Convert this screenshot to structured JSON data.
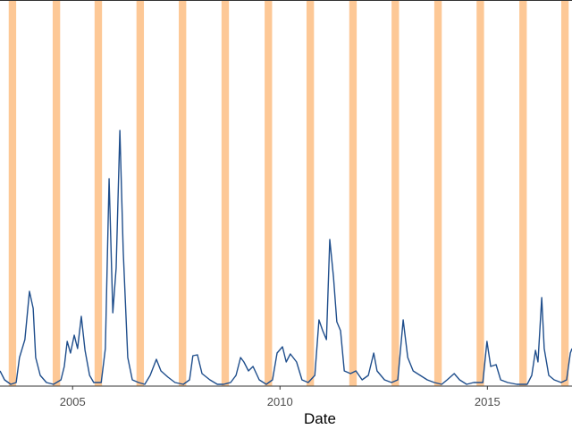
{
  "chart_data": {
    "type": "line",
    "x_label": "Date",
    "xlim": [
      2003.25,
      2017.04
    ],
    "xticks": [
      2005,
      2010,
      2015
    ],
    "ylim": [
      0,
      43.2
    ],
    "band_color": "#fdc896",
    "bands": [
      [
        2003.46,
        2003.64
      ],
      [
        2004.52,
        2004.7
      ],
      [
        2005.53,
        2005.71
      ],
      [
        2006.54,
        2006.72
      ],
      [
        2007.56,
        2007.74
      ],
      [
        2008.59,
        2008.77
      ],
      [
        2009.63,
        2009.81
      ],
      [
        2010.64,
        2010.82
      ],
      [
        2011.67,
        2011.85
      ],
      [
        2012.69,
        2012.87
      ],
      [
        2013.72,
        2013.9
      ],
      [
        2014.74,
        2014.92
      ],
      [
        2015.77,
        2015.95
      ],
      [
        2016.78,
        2016.96
      ]
    ],
    "series": [
      {
        "color": "#1f4e8c",
        "x": [
          2003.25,
          2003.36,
          2003.51,
          2003.64,
          2003.72,
          2003.85,
          2003.96,
          2004.05,
          2004.11,
          2004.22,
          2004.37,
          2004.54,
          2004.72,
          2004.8,
          2004.87,
          2004.95,
          2005.04,
          2005.12,
          2005.21,
          2005.3,
          2005.41,
          2005.51,
          2005.69,
          2005.79,
          2005.88,
          2005.97,
          2006.05,
          2006.14,
          2006.22,
          2006.33,
          2006.44,
          2006.59,
          2006.74,
          2006.87,
          2007.02,
          2007.13,
          2007.3,
          2007.47,
          2007.67,
          2007.82,
          2007.9,
          2008.01,
          2008.12,
          2008.31,
          2008.49,
          2008.64,
          2008.81,
          2008.94,
          2009.05,
          2009.13,
          2009.24,
          2009.35,
          2009.5,
          2009.67,
          2009.82,
          2009.93,
          2010.06,
          2010.15,
          2010.25,
          2010.4,
          2010.53,
          2010.68,
          2010.84,
          2010.94,
          2011.03,
          2011.12,
          2011.2,
          2011.29,
          2011.37,
          2011.46,
          2011.55,
          2011.7,
          2011.83,
          2011.98,
          2012.13,
          2012.26,
          2012.34,
          2012.52,
          2012.69,
          2012.84,
          2012.97,
          2013.08,
          2013.21,
          2013.38,
          2013.55,
          2013.72,
          2013.9,
          2014.03,
          2014.2,
          2014.33,
          2014.5,
          2014.67,
          2014.89,
          2014.99,
          2015.08,
          2015.21,
          2015.32,
          2015.49,
          2015.71,
          2015.96,
          2016.07,
          2016.16,
          2016.22,
          2016.31,
          2016.37,
          2016.48,
          2016.61,
          2016.78,
          2016.91,
          2017.0,
          2017.04
        ],
        "values": [
          1.7,
          0.7,
          0.2,
          0.4,
          3.2,
          5.2,
          10.6,
          8.7,
          3.2,
          1.2,
          0.4,
          0.2,
          0.7,
          2.2,
          5.0,
          3.7,
          5.7,
          4.2,
          7.8,
          4.0,
          1.2,
          0.4,
          0.4,
          4.2,
          23.2,
          8.2,
          13.2,
          28.6,
          15.2,
          3.2,
          0.7,
          0.4,
          0.2,
          1.2,
          3.0,
          1.7,
          1.0,
          0.4,
          0.2,
          0.7,
          3.4,
          3.5,
          1.4,
          0.7,
          0.2,
          0.2,
          0.4,
          1.2,
          3.2,
          2.7,
          1.7,
          2.2,
          0.7,
          0.2,
          0.7,
          3.7,
          4.4,
          2.7,
          3.6,
          2.7,
          0.7,
          0.4,
          1.2,
          7.4,
          6.2,
          5.2,
          16.4,
          12.2,
          7.2,
          6.2,
          1.7,
          1.4,
          1.7,
          0.7,
          1.2,
          3.7,
          1.7,
          0.7,
          0.4,
          0.7,
          7.4,
          3.2,
          1.7,
          1.2,
          0.7,
          0.4,
          0.2,
          0.7,
          1.4,
          0.7,
          0.2,
          0.4,
          0.4,
          5.0,
          2.2,
          2.4,
          0.7,
          0.4,
          0.2,
          0.2,
          1.2,
          4.0,
          2.7,
          9.9,
          4.2,
          1.2,
          0.7,
          0.4,
          0.7,
          3.7,
          4.2
        ]
      }
    ]
  }
}
